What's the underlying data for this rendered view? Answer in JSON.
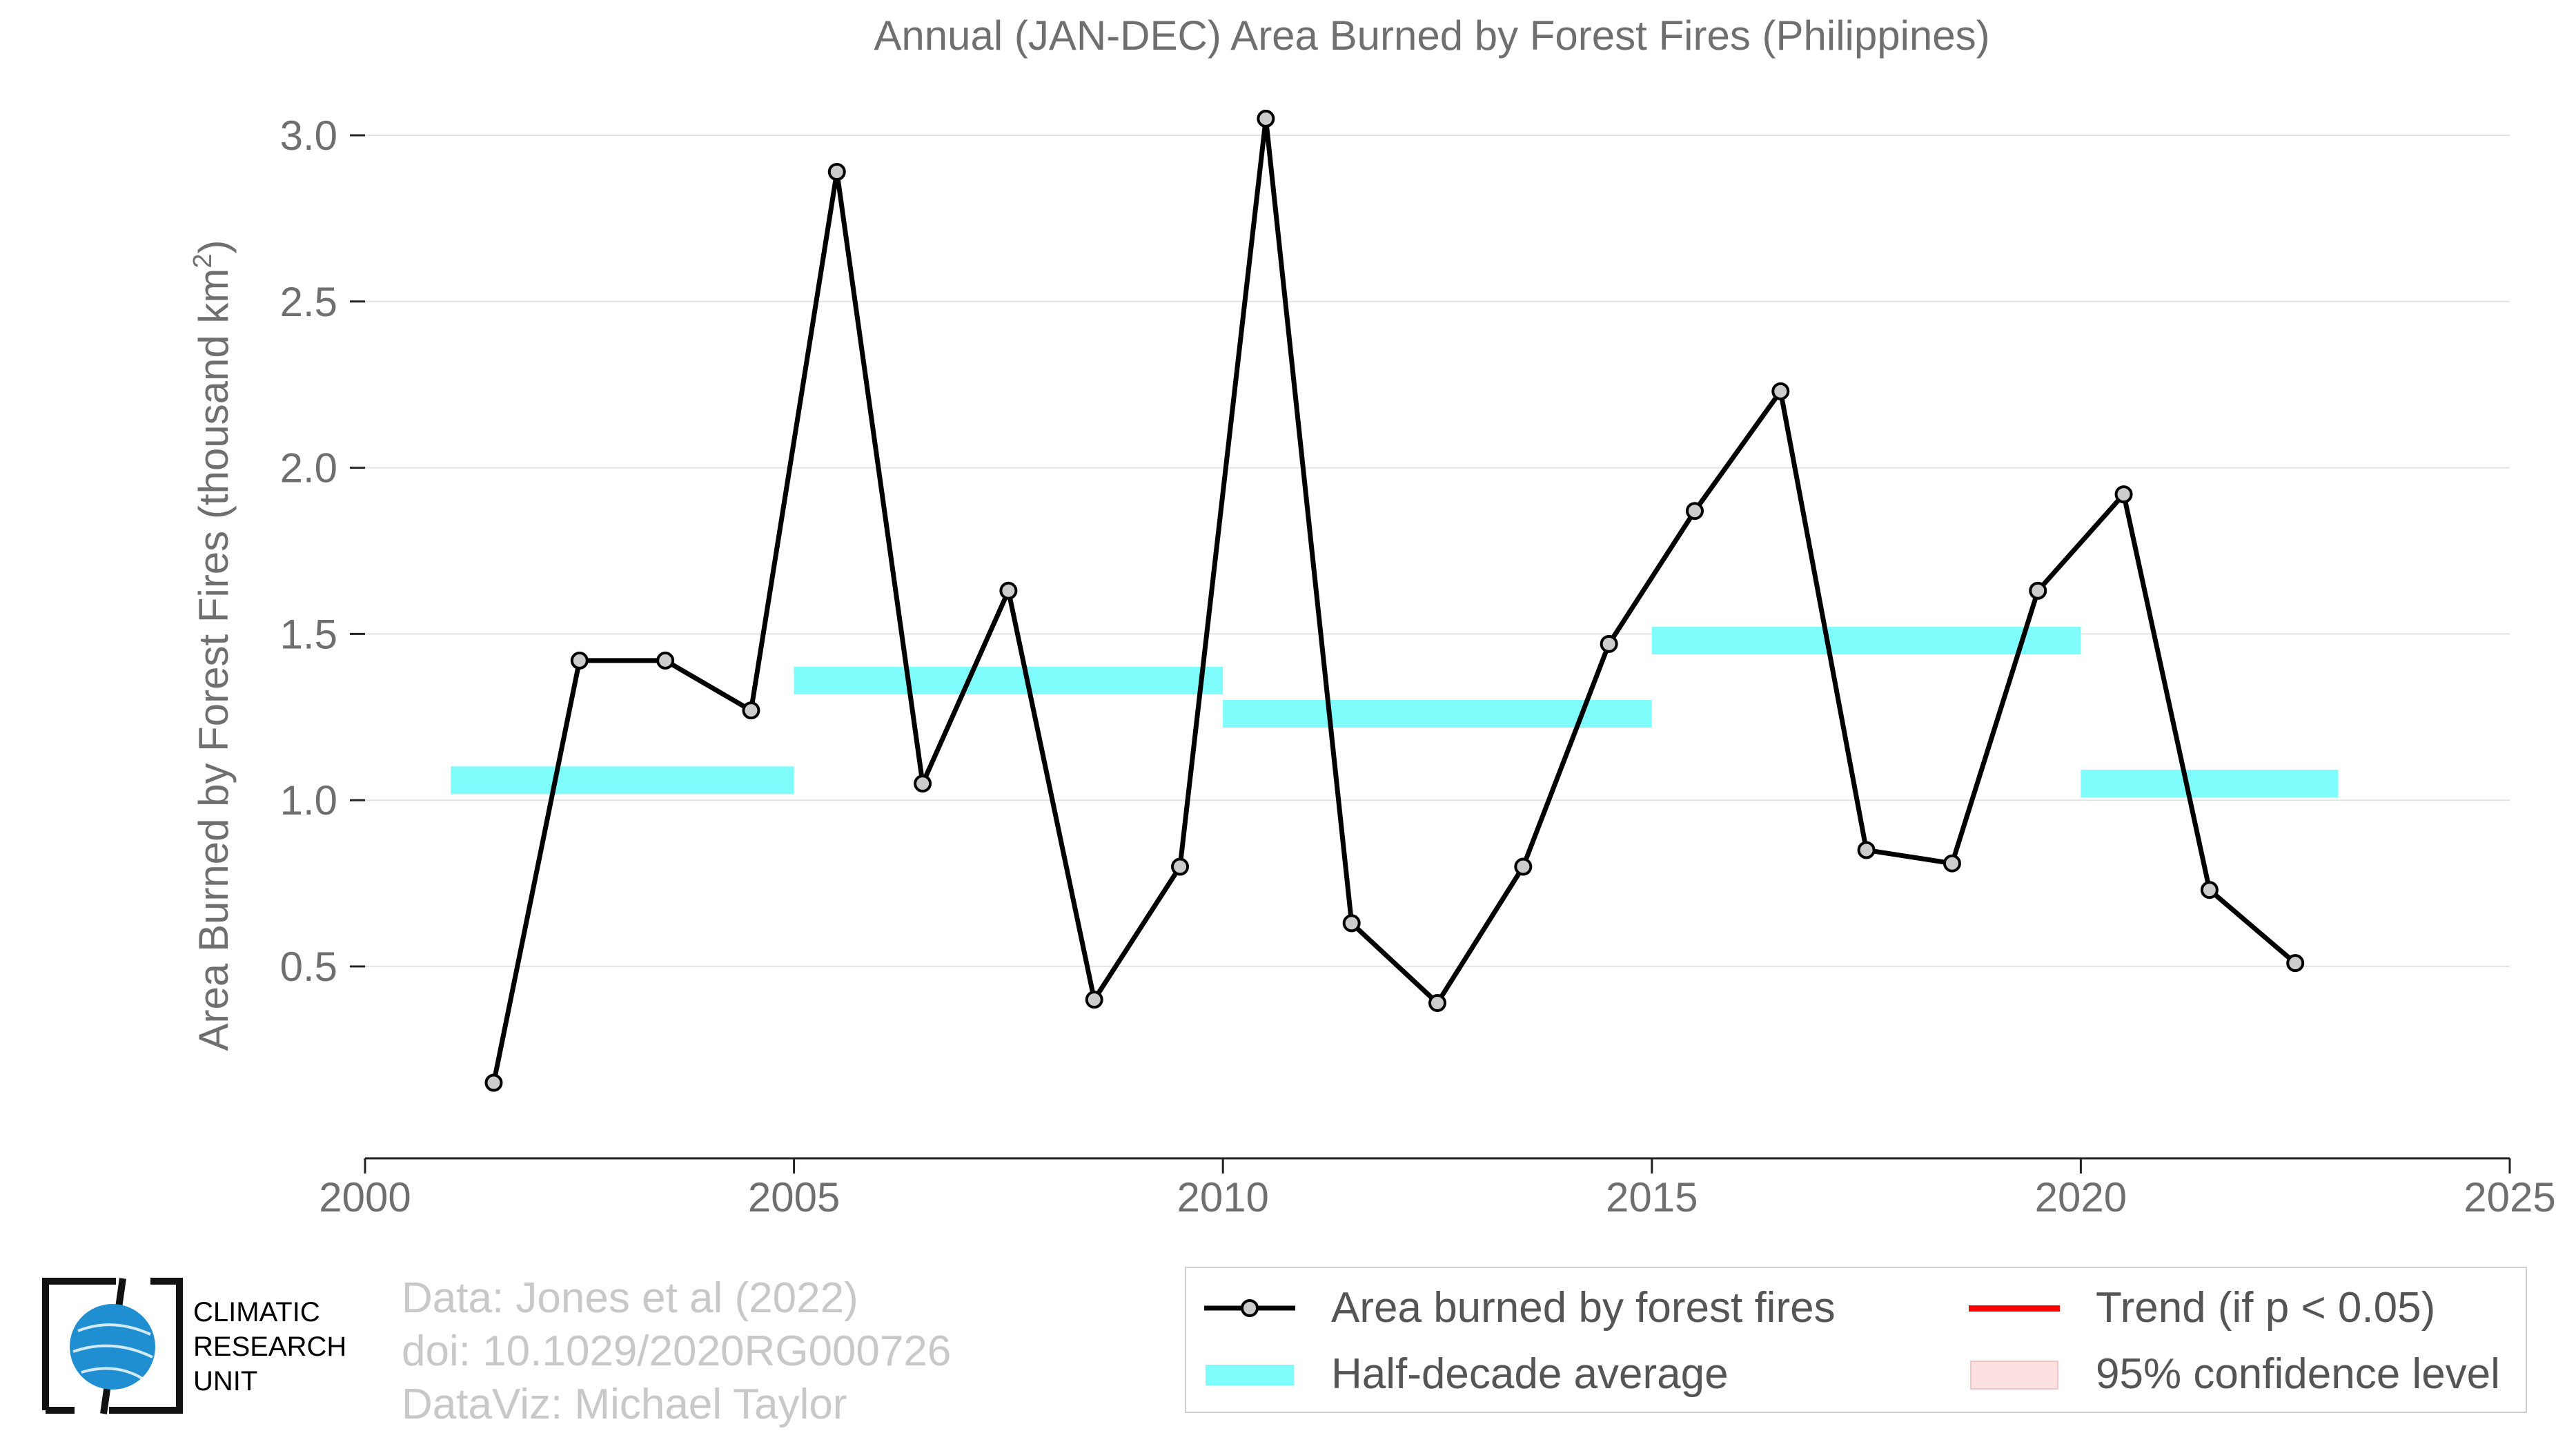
{
  "chart_data": {
    "type": "line",
    "title": "Annual (JAN-DEC) Area Burned by Forest Fires (Philippines)",
    "ylabel": "Area Burned by Forest Fires (thousand km",
    "ylabel_sup": "2",
    "ylabel_end": ")",
    "xlabel": "",
    "xlim": [
      2000,
      2025
    ],
    "ylim": [
      -0.05,
      3.1
    ],
    "xticks": [
      2000,
      2005,
      2010,
      2015,
      2020,
      2025
    ],
    "xtick_labels": [
      "2000",
      "2005",
      "2010",
      "2015",
      "2020",
      "2025"
    ],
    "yticks": [
      0.5,
      1.0,
      1.5,
      2.0,
      2.5,
      3.0
    ],
    "ytick_labels": [
      "0.5",
      "1.0",
      "1.5",
      "2.0",
      "2.5",
      "3.0"
    ],
    "grid": true,
    "series": [
      {
        "name": "Area burned by forest fires",
        "color": "#000000",
        "marker_fill": "#cccccc",
        "x": [
          2001.5,
          2002.5,
          2003.5,
          2004.5,
          2005.5,
          2006.5,
          2007.5,
          2008.5,
          2009.5,
          2010.5,
          2011.5,
          2012.5,
          2013.5,
          2014.5,
          2015.5,
          2016.5,
          2017.5,
          2018.5,
          2019.5,
          2020.5,
          2021.5,
          2022.5
        ],
        "values": [
          0.15,
          1.42,
          1.42,
          1.27,
          2.89,
          1.05,
          1.63,
          0.4,
          0.8,
          3.05,
          0.63,
          0.39,
          0.8,
          1.47,
          1.87,
          2.23,
          0.85,
          0.81,
          1.63,
          1.92,
          0.73,
          0.51
        ]
      }
    ],
    "half_decade_average": {
      "name": "Half-decade average",
      "color": "#7ffcfc",
      "segments": [
        {
          "x0": 2001,
          "x1": 2005,
          "value": 1.06
        },
        {
          "x0": 2005,
          "x1": 2010,
          "value": 1.36
        },
        {
          "x0": 2010,
          "x1": 2015,
          "value": 1.26
        },
        {
          "x0": 2015,
          "x1": 2020,
          "value": 1.48
        },
        {
          "x0": 2020,
          "x1": 2023,
          "value": 1.05
        }
      ]
    },
    "legend": {
      "position": "bottom-right",
      "items": [
        {
          "label": "Area burned by forest fires",
          "type": "line-marker",
          "color": "#000000"
        },
        {
          "label": "Half-decade average",
          "type": "band",
          "color": "#7ffcfc"
        },
        {
          "label": "Trend (if p < 0.05)",
          "type": "line",
          "color": "#ff0000"
        },
        {
          "label": "95% confidence level",
          "type": "band",
          "color": "#fde0e0"
        }
      ]
    }
  },
  "credits": {
    "line1": "Data: Jones et al (2022)",
    "line2": "doi: 10.1029/2020RG000726",
    "line3": "DataViz: Michael Taylor"
  },
  "logo": {
    "line1": "CLIMATIC",
    "line2": "RESEARCH",
    "line3": "UNIT",
    "globe_color": "#1f8fd1"
  }
}
